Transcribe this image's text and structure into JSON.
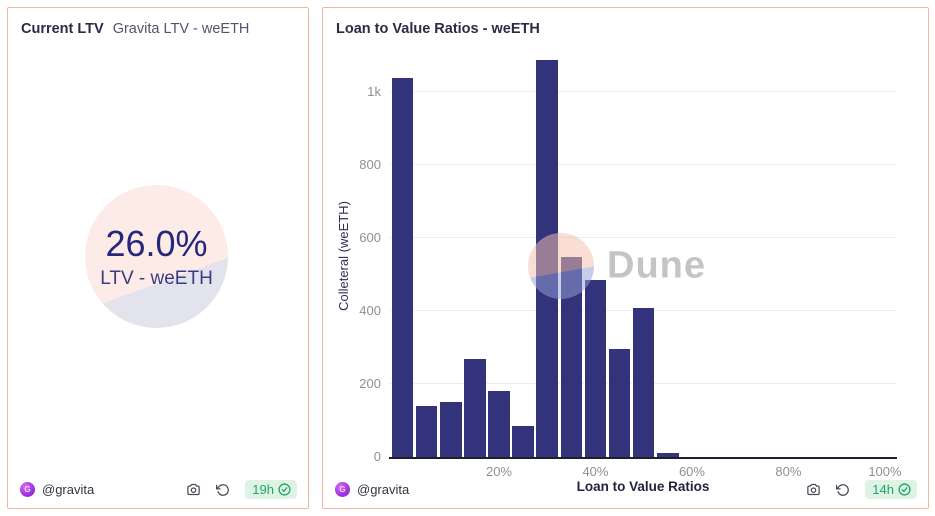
{
  "left_card": {
    "title": "Current LTV",
    "subtitle": "Gravita LTV - weETH",
    "footer": {
      "author": "@gravita",
      "updated": "19h"
    }
  },
  "right_card": {
    "title": "Loan to Value Ratios - weETH",
    "footer": {
      "author": "@gravita",
      "updated": "14h"
    }
  },
  "chart_data": [
    {
      "type": "pie",
      "title": "Current LTV — Gravita LTV - weETH",
      "center_label": "26.0%",
      "center_caption": "LTV - weETH",
      "slices": [
        {
          "label": "LTV - weETH",
          "value": 26.0,
          "color": "#e3e3ed"
        },
        {
          "label": "",
          "value": 74.0,
          "color": "#fcebe6"
        }
      ],
      "value_color": "#26267c"
    },
    {
      "type": "bar",
      "title": "Loan to Value Ratios - weETH",
      "xlabel": "Loan to Value Ratios",
      "ylabel": "Colleteral (weETH)",
      "x": [
        0,
        5,
        10,
        15,
        20,
        25,
        30,
        35,
        40,
        45,
        50,
        55
      ],
      "values": [
        1040,
        140,
        150,
        270,
        180,
        85,
        1090,
        550,
        485,
        295,
        410,
        12
      ],
      "y_ticks": [
        0,
        200,
        400,
        600,
        800,
        1000
      ],
      "y_tick_labels": [
        "0",
        "200",
        "400",
        "600",
        "800",
        "1k"
      ],
      "x_ticks": [
        20,
        40,
        60,
        80,
        100
      ],
      "x_tick_labels": [
        "20%",
        "40%",
        "60%",
        "80%",
        "100%"
      ],
      "xlim": [
        -2.8,
        102.5
      ],
      "ylim": [
        0,
        1100
      ],
      "bar_color": "#33337b",
      "grid": true,
      "legend": false,
      "watermark": "Dune"
    }
  ],
  "colors": {
    "card_border": "#f2b5a4",
    "badge_bg": "#def3e6",
    "badge_text": "#1ba85f",
    "gridline": "#ececf1",
    "tick_label": "#8f8f98"
  }
}
